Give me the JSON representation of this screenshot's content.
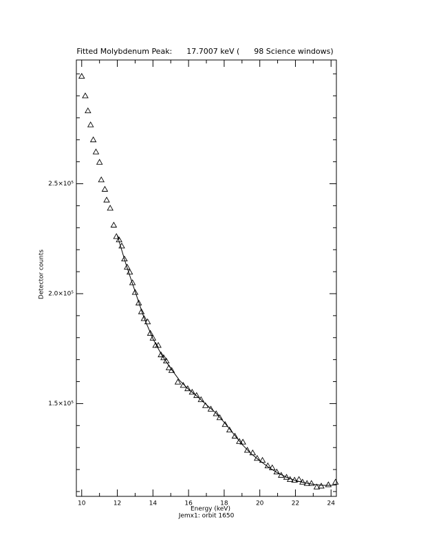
{
  "chart_data": {
    "type": "scatter",
    "title": "Fitted Molybdenum Peak:      17.7007 keV (      98 Science windows)",
    "x_label": "Energy (keV)",
    "y_label": "Detector counts",
    "subtitle": "Jemx1: orbit 1650",
    "xlim": [
      9.7,
      24.3
    ],
    "ylim": [
      107800,
      306300
    ],
    "xticks": [
      10,
      12,
      14,
      16,
      18,
      20,
      22,
      24
    ],
    "xminorticks": [
      11,
      13,
      15,
      17,
      19,
      21,
      23
    ],
    "yticks": [
      {
        "value": 150000,
        "label": "1.5×10⁵"
      },
      {
        "value": 200000,
        "label": "2.0×10⁵"
      },
      {
        "value": 250000,
        "label": "2.5×10⁵"
      }
    ],
    "yminorticks": [
      110000,
      120000,
      130000,
      140000,
      160000,
      170000,
      180000,
      190000,
      210000,
      220000,
      230000,
      240000,
      260000,
      270000,
      280000,
      290000,
      300000
    ],
    "series": [
      {
        "color": "#000000",
        "marker": "triangle",
        "x": [
          10.0,
          10.2,
          10.35,
          10.5,
          10.65,
          10.8,
          11.0,
          11.1,
          11.3,
          11.4,
          11.6,
          11.8,
          11.95,
          12.1,
          12.25,
          12.4,
          12.55,
          12.7,
          12.85,
          13.0,
          13.2,
          13.35,
          13.5,
          13.7,
          13.85,
          14.0,
          14.15,
          14.3,
          14.45,
          14.6,
          14.75,
          14.9,
          15.05,
          15.4,
          15.7,
          15.95,
          16.2,
          16.45,
          16.7,
          16.95,
          17.25,
          17.55,
          17.75,
          18.05,
          18.3,
          18.6,
          18.85,
          19.05,
          19.3,
          19.6,
          19.85,
          20.15,
          20.45,
          20.7,
          20.95,
          21.2,
          21.5,
          21.7,
          21.95,
          22.2,
          22.4,
          22.65,
          22.9,
          23.2,
          23.45,
          23.85,
          24.25
        ],
        "values": [
          298900,
          290000,
          283200,
          276800,
          270000,
          264500,
          259800,
          251800,
          247500,
          242600,
          238900,
          231200,
          226000,
          224500,
          221700,
          215800,
          212100,
          209800,
          205000,
          200600,
          195800,
          191800,
          188700,
          187200,
          182000,
          179800,
          176500,
          176500,
          172200,
          170900,
          169400,
          166300,
          165100,
          159800,
          158300,
          156800,
          155200,
          153700,
          151800,
          149100,
          147500,
          145400,
          143600,
          140500,
          138000,
          135200,
          132800,
          132500,
          128800,
          127600,
          125100,
          124200,
          121700,
          120800,
          118900,
          117400,
          116500,
          115500,
          115200,
          115500,
          114300,
          113700,
          113700,
          112100,
          112500,
          113100,
          114300
        ]
      },
      {
        "color": "#000000",
        "marker": "line",
        "x": [
          12.0,
          12.5,
          13.0,
          13.5,
          14.0,
          14.5,
          15.0,
          15.5,
          16.0,
          16.5,
          17.0,
          17.5,
          18.0,
          18.5,
          19.0,
          19.5,
          20.0,
          20.5,
          21.0,
          21.5,
          22.0,
          22.5,
          23.0,
          23.5,
          24.0,
          24.3
        ],
        "values": [
          226500,
          213000,
          201000,
          189000,
          179500,
          172000,
          166000,
          160500,
          156500,
          153200,
          149500,
          146000,
          141500,
          136500,
          131500,
          127300,
          124000,
          121000,
          118500,
          116500,
          115000,
          114000,
          113300,
          112800,
          112800,
          113000
        ]
      }
    ]
  }
}
